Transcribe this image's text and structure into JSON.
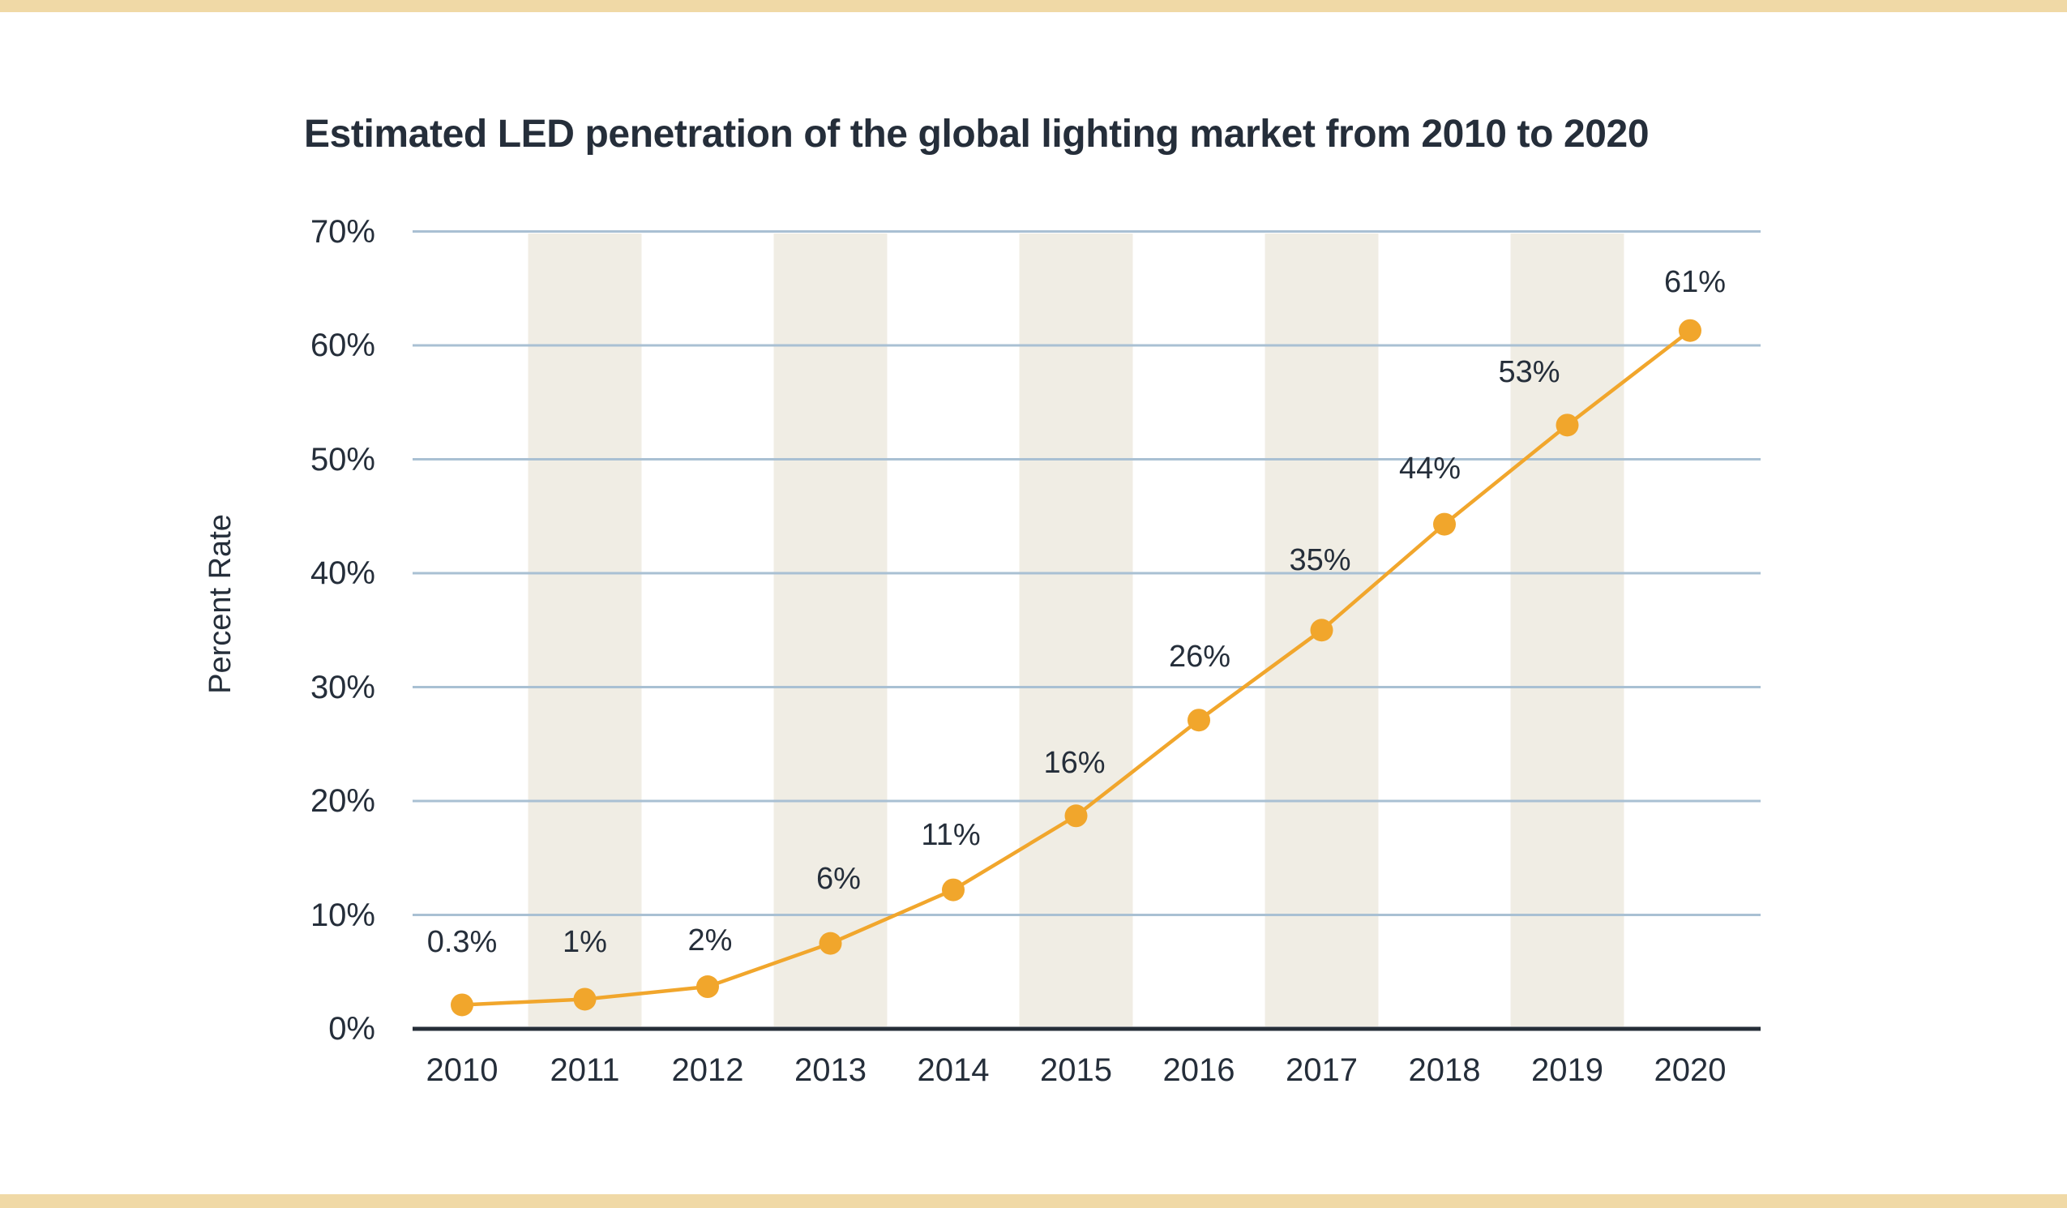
{
  "page": {
    "title": "Estimated LED penetration of the global lighting market from 2010 to 2020"
  },
  "colors": {
    "background": "#FFFFFF",
    "border_band": "#F0D9A6",
    "stripe": "#F0EDE4",
    "gridline": "#A9C0D3",
    "axis_line": "#252E38",
    "text": "#252E3A",
    "series_line": "#F1A62C",
    "point_fill": "#F1A62C"
  },
  "chart_data": {
    "type": "line",
    "title": "Estimated LED penetration of the global lighting market from 2010 to 2020",
    "xlabel": "",
    "ylabel": "Percent Rate",
    "categories": [
      "2010",
      "2011",
      "2012",
      "2013",
      "2014",
      "2015",
      "2016",
      "2017",
      "2018",
      "2019",
      "2020"
    ],
    "values": [
      0.3,
      1,
      2,
      6,
      11,
      16,
      26,
      35,
      44,
      53,
      61
    ],
    "point_labels": [
      "0.3%",
      "1%",
      "2%",
      "6%",
      "11%",
      "16%",
      "26%",
      "35%",
      "44%",
      "53%",
      "61%"
    ],
    "y_ticks": [
      0,
      10,
      20,
      30,
      40,
      50,
      60,
      70
    ],
    "y_tick_labels": [
      "0%",
      "10%",
      "20%",
      "30%",
      "40%",
      "50%",
      "60%",
      "70%"
    ],
    "ylim": [
      0,
      70
    ],
    "grid": "horizontal",
    "legend": "none",
    "striped_categories": [
      "2011",
      "2013",
      "2015",
      "2017",
      "2019"
    ],
    "layout_hints": {
      "plotted_percents": [
        2.1,
        2.6,
        3.7,
        7.5,
        12.2,
        18.7,
        27.1,
        35.0,
        44.3,
        53.0,
        61.3
      ],
      "label_dx": [
        0,
        0,
        3,
        10,
        -3,
        -2,
        1,
        -2,
        -18,
        -47,
        6
      ],
      "label_dy": [
        -77,
        -70,
        -57,
        -80,
        -68,
        -65,
        -78,
        -86,
        -69,
        -65,
        -60
      ]
    }
  }
}
